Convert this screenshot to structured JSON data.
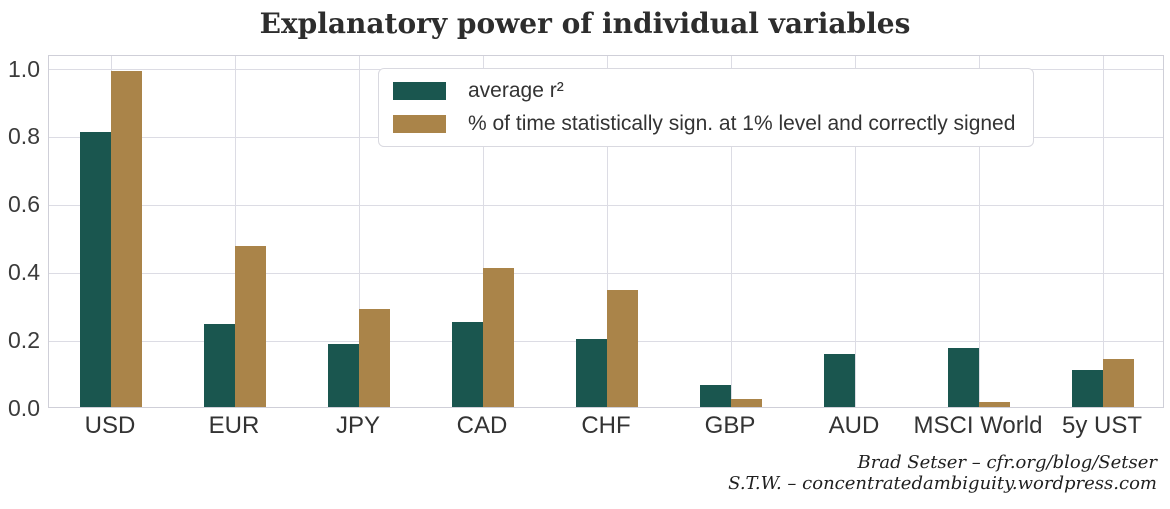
{
  "figure": {
    "attribution_line1": "Brad Setser – cfr.org/blog/Setser",
    "attribution_line2": "S.T.W. – concentratedambiguity.wordpress.com"
  },
  "chart_data": {
    "type": "bar",
    "title": "Explanatory power of individual variables",
    "xlabel": "",
    "ylabel": "",
    "categories": [
      "USD",
      "EUR",
      "JPY",
      "CAD",
      "CHF",
      "GBP",
      "AUD",
      "MSCI World",
      "5y UST"
    ],
    "series": [
      {
        "name": "average r²",
        "color": "#1A564F",
        "values": [
          0.81,
          0.245,
          0.185,
          0.25,
          0.2,
          0.065,
          0.155,
          0.175,
          0.11
        ]
      },
      {
        "name": "% of time statistically sign. at 1% level and correctly signed",
        "color": "#AA8449",
        "values": [
          0.99,
          0.475,
          0.29,
          0.41,
          0.345,
          0.025,
          0.0,
          0.015,
          0.14
        ]
      }
    ],
    "ylim": [
      0,
      1.04
    ],
    "yticks": [
      0.0,
      0.2,
      0.4,
      0.6,
      0.8,
      1.0
    ],
    "grid": "both",
    "legend_position": "upper center"
  }
}
